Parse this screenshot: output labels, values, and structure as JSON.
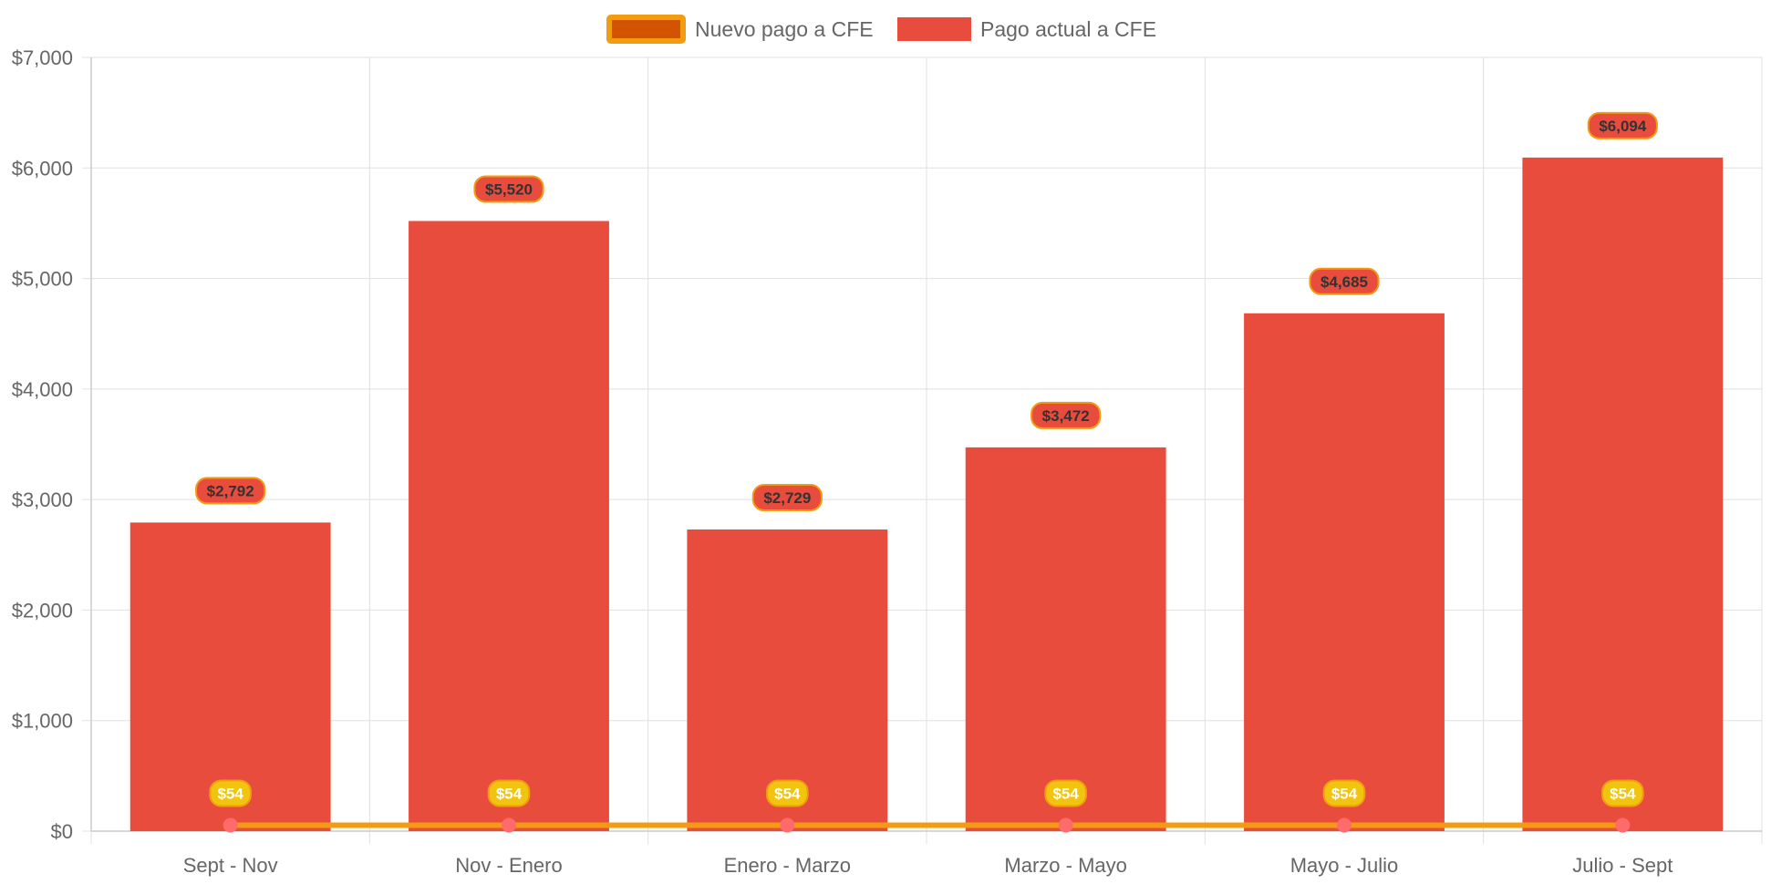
{
  "chart_data": {
    "type": "bar",
    "categories": [
      "Sept - Nov",
      "Nov - Enero",
      "Enero - Marzo",
      "Marzo - Mayo",
      "Mayo - Julio",
      "Julio - Sept"
    ],
    "series": [
      {
        "name": "Nuevo pago a CFE",
        "type": "line",
        "values": [
          54,
          54,
          54,
          54,
          54,
          54
        ],
        "labels": [
          "$54",
          "$54",
          "$54",
          "$54",
          "$54",
          "$54"
        ],
        "color": "#f39c12",
        "fill": "#d35400",
        "point_color": "#ff6b6b"
      },
      {
        "name": "Pago actual a CFE",
        "type": "bar",
        "values": [
          2792,
          5520,
          2729,
          3472,
          4685,
          6094
        ],
        "labels": [
          "$2,792",
          "$5,520",
          "$2,729",
          "$3,472",
          "$4,685",
          "$6,094"
        ],
        "color": "#e74c3c"
      }
    ],
    "y_ticks": [
      "$0",
      "$1,000",
      "$2,000",
      "$3,000",
      "$4,000",
      "$5,000",
      "$6,000",
      "$7,000"
    ],
    "ylim": [
      0,
      7000
    ],
    "grid": true,
    "legend_position": "top-center",
    "colors": {
      "grid": "#e0e0e0",
      "label_fill_line": "#f1c40f",
      "label_border": "#f39c12"
    }
  }
}
